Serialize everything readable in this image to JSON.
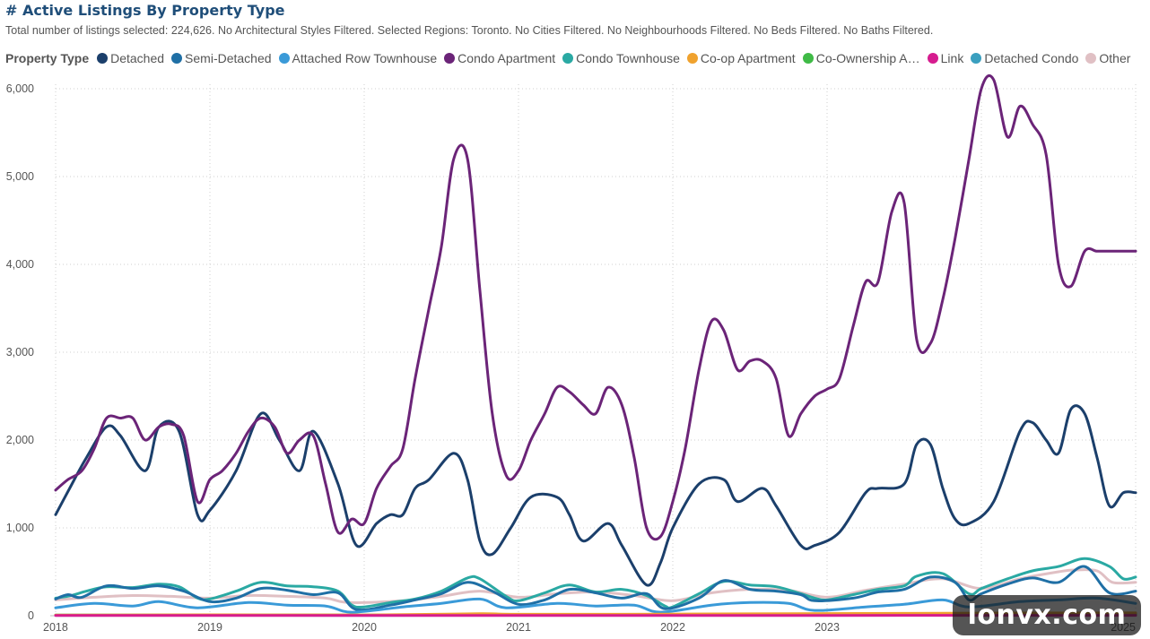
{
  "header": {
    "title": "# Active Listings By Property Type",
    "subtitle": "Total number of listings selected: 224,626. No Architectural Styles Filtered. Selected Regions: Toronto. No Cities Filtered. No Neighbourhoods Filtered. No Beds Filtered. No Baths Filtered."
  },
  "legend": {
    "title": "Property Type",
    "items": [
      {
        "label": "Detached",
        "color": "#1b3f6b"
      },
      {
        "label": "Semi-Detached",
        "color": "#1f6fa5"
      },
      {
        "label": "Attached Row Townhouse",
        "color": "#3a9ad8"
      },
      {
        "label": "Condo Apartment",
        "color": "#6b2478"
      },
      {
        "label": "Condo Townhouse",
        "color": "#2aa9a3"
      },
      {
        "label": "Co-op Apartment",
        "color": "#f0a22e"
      },
      {
        "label": "Co-Ownership A…",
        "color": "#3fba46"
      },
      {
        "label": "Link",
        "color": "#d61c8f"
      },
      {
        "label": "Detached Condo",
        "color": "#3a9fbf"
      },
      {
        "label": "Other",
        "color": "#e0c0c4"
      }
    ]
  },
  "watermark": "lonvx.com",
  "chart_data": {
    "type": "line",
    "title": "# Active Listings By Property Type",
    "x_range": [
      2018.0,
      2025.0
    ],
    "x_ticks": [
      2018,
      2019,
      2020,
      2021,
      2022,
      2023,
      2024,
      2025
    ],
    "x_tick_labels": [
      "2018",
      "2019",
      "2020",
      "2021",
      "2022",
      "2023",
      "",
      "2025"
    ],
    "ylim": [
      0,
      6000
    ],
    "y_ticks": [
      0,
      1000,
      2000,
      3000,
      4000,
      5000,
      6000
    ],
    "y_tick_labels": [
      "0",
      "1,000",
      "2,000",
      "3,000",
      "4,000",
      "5,000",
      "6,000"
    ],
    "grid": true,
    "legend_position": "top",
    "series": [
      {
        "name": "Other",
        "color": "#e0c0c4",
        "x": [
          2018.0,
          2018.25,
          2018.5,
          2018.75,
          2019.0,
          2019.25,
          2019.5,
          2019.75,
          2019.9,
          2020.25,
          2020.5,
          2020.75,
          2021.0,
          2021.25,
          2021.5,
          2021.75,
          2022.0,
          2022.25,
          2022.5,
          2022.75,
          2023.0,
          2023.25,
          2023.5,
          2023.75,
          2024.0,
          2024.25,
          2024.5,
          2024.6,
          2024.75,
          2024.85,
          2025.0
        ],
        "values": [
          180,
          210,
          230,
          220,
          200,
          230,
          220,
          200,
          150,
          170,
          220,
          280,
          210,
          250,
          270,
          230,
          170,
          260,
          300,
          290,
          210,
          290,
          360,
          420,
          310,
          420,
          500,
          520,
          510,
          380,
          380
        ]
      },
      {
        "name": "Condo Townhouse",
        "color": "#2aa9a3",
        "x": [
          2018.0,
          2018.1,
          2018.2,
          2018.33,
          2018.5,
          2018.67,
          2018.8,
          2018.92,
          2019.0,
          2019.17,
          2019.33,
          2019.5,
          2019.67,
          2019.83,
          2019.92,
          2020.0,
          2020.17,
          2020.33,
          2020.5,
          2020.67,
          2020.75,
          2020.92,
          2021.0,
          2021.17,
          2021.33,
          2021.5,
          2021.67,
          2021.83,
          2021.95,
          2022.0,
          2022.17,
          2022.33,
          2022.5,
          2022.67,
          2022.83,
          2022.92,
          2023.0,
          2023.17,
          2023.33,
          2023.5,
          2023.58,
          2023.75,
          2023.92,
          2024.0,
          2024.17,
          2024.33,
          2024.5,
          2024.67,
          2024.83,
          2024.92,
          2025.0
        ],
        "values": [
          200,
          230,
          280,
          330,
          320,
          360,
          330,
          200,
          190,
          280,
          380,
          340,
          330,
          280,
          120,
          100,
          150,
          190,
          280,
          430,
          420,
          220,
          170,
          260,
          350,
          270,
          300,
          230,
          110,
          100,
          250,
          390,
          350,
          330,
          250,
          200,
          180,
          240,
          300,
          340,
          450,
          480,
          250,
          310,
          420,
          510,
          560,
          650,
          560,
          420,
          440
        ]
      },
      {
        "name": "Semi-Detached",
        "color": "#1f6fa5",
        "x": [
          2018.0,
          2018.08,
          2018.17,
          2018.33,
          2018.5,
          2018.67,
          2018.83,
          2019.0,
          2019.17,
          2019.33,
          2019.5,
          2019.67,
          2019.83,
          2019.95,
          2020.17,
          2020.33,
          2020.5,
          2020.67,
          2020.83,
          2021.0,
          2021.17,
          2021.33,
          2021.5,
          2021.67,
          2021.83,
          2021.95,
          2022.17,
          2022.33,
          2022.5,
          2022.67,
          2022.83,
          2022.92,
          2023.17,
          2023.33,
          2023.5,
          2023.67,
          2023.83,
          2023.92,
          2024.0,
          2024.17,
          2024.33,
          2024.5,
          2024.67,
          2024.83,
          2025.0
        ],
        "values": [
          190,
          240,
          210,
          340,
          310,
          340,
          280,
          160,
          200,
          310,
          290,
          240,
          260,
          70,
          120,
          180,
          250,
          380,
          280,
          130,
          180,
          300,
          260,
          200,
          250,
          80,
          200,
          400,
          300,
          280,
          240,
          170,
          200,
          270,
          300,
          440,
          380,
          180,
          250,
          360,
          430,
          380,
          560,
          260,
          280
        ]
      },
      {
        "name": "Attached Row Townhouse",
        "color": "#3a9ad8",
        "x": [
          2018.0,
          2018.25,
          2018.5,
          2018.67,
          2018.92,
          2019.25,
          2019.5,
          2019.75,
          2019.92,
          2020.25,
          2020.5,
          2020.75,
          2020.92,
          2021.25,
          2021.5,
          2021.75,
          2021.92,
          2022.25,
          2022.5,
          2022.75,
          2022.92,
          2023.25,
          2023.5,
          2023.75,
          2023.92,
          2024.25,
          2024.5,
          2024.75,
          2025.0
        ],
        "values": [
          90,
          140,
          110,
          160,
          90,
          150,
          120,
          110,
          40,
          100,
          140,
          190,
          90,
          140,
          110,
          120,
          40,
          120,
          150,
          140,
          60,
          100,
          130,
          180,
          100,
          160,
          180,
          200,
          140
        ]
      },
      {
        "name": "Detached Condo",
        "color": "#3a9fbf",
        "x": [
          2018.0,
          2019.0,
          2020.0,
          2021.0,
          2022.0,
          2023.0,
          2024.0,
          2025.0
        ],
        "values": [
          4,
          5,
          4,
          6,
          5,
          6,
          7,
          8
        ]
      },
      {
        "name": "Co-Ownership A…",
        "color": "#3fba46",
        "x": [
          2018.0,
          2019.0,
          2020.0,
          2021.0,
          2022.0,
          2023.0,
          2024.0,
          2025.0
        ],
        "values": [
          8,
          8,
          7,
          12,
          10,
          14,
          20,
          24
        ]
      },
      {
        "name": "Co-op Apartment",
        "color": "#f0a22e",
        "x": [
          2018.0,
          2019.0,
          2020.0,
          2020.75,
          2021.0,
          2022.0,
          2023.0,
          2024.0,
          2025.0
        ],
        "values": [
          6,
          10,
          8,
          22,
          16,
          18,
          24,
          30,
          32
        ]
      },
      {
        "name": "Link",
        "color": "#d61c8f",
        "x": [
          2018.0,
          2019.0,
          2020.0,
          2021.0,
          2022.0,
          2023.0,
          2024.0,
          2025.0
        ],
        "values": [
          2,
          3,
          2,
          3,
          3,
          3,
          4,
          4
        ]
      },
      {
        "name": "Detached",
        "color": "#1b3f6b",
        "x": [
          2018.0,
          2018.1,
          2018.2,
          2018.33,
          2018.42,
          2018.58,
          2018.67,
          2018.8,
          2018.92,
          2019.0,
          2019.17,
          2019.33,
          2019.45,
          2019.58,
          2019.67,
          2019.83,
          2019.95,
          2020.08,
          2020.17,
          2020.25,
          2020.33,
          2020.42,
          2020.58,
          2020.67,
          2020.75,
          2020.83,
          2020.95,
          2021.08,
          2021.25,
          2021.33,
          2021.42,
          2021.58,
          2021.67,
          2021.83,
          2021.92,
          2022.0,
          2022.17,
          2022.33,
          2022.42,
          2022.58,
          2022.67,
          2022.83,
          2022.92,
          2023.08,
          2023.25,
          2023.33,
          2023.5,
          2023.58,
          2023.67,
          2023.75,
          2023.83,
          2023.92,
          2024.08,
          2024.25,
          2024.33,
          2024.42,
          2024.5,
          2024.58,
          2024.67,
          2024.75,
          2024.83,
          2024.92,
          2025.0
        ],
        "values": [
          1150,
          1480,
          1800,
          2150,
          2050,
          1650,
          2150,
          2100,
          1150,
          1200,
          1650,
          2300,
          2000,
          1650,
          2100,
          1500,
          800,
          1050,
          1150,
          1150,
          1450,
          1550,
          1850,
          1550,
          850,
          700,
          1000,
          1350,
          1350,
          1150,
          850,
          1050,
          800,
          350,
          600,
          1000,
          1500,
          1550,
          1300,
          1450,
          1250,
          800,
          800,
          950,
          1400,
          1450,
          1500,
          1950,
          1950,
          1450,
          1100,
          1050,
          1300,
          2100,
          2200,
          2000,
          1850,
          2350,
          2300,
          1800,
          1250,
          1400,
          1400
        ]
      },
      {
        "name": "Condo Apartment",
        "color": "#6b2478",
        "x": [
          2018.0,
          2018.08,
          2018.17,
          2018.25,
          2018.33,
          2018.42,
          2018.5,
          2018.58,
          2018.67,
          2018.75,
          2018.83,
          2018.92,
          2019.0,
          2019.08,
          2019.17,
          2019.25,
          2019.33,
          2019.42,
          2019.5,
          2019.58,
          2019.67,
          2019.75,
          2019.83,
          2019.92,
          2020.0,
          2020.08,
          2020.17,
          2020.25,
          2020.33,
          2020.42,
          2020.5,
          2020.58,
          2020.67,
          2020.75,
          2020.83,
          2020.92,
          2021.0,
          2021.08,
          2021.17,
          2021.25,
          2021.33,
          2021.42,
          2021.5,
          2021.58,
          2021.67,
          2021.75,
          2021.83,
          2021.92,
          2022.0,
          2022.08,
          2022.17,
          2022.25,
          2022.33,
          2022.42,
          2022.5,
          2022.58,
          2022.67,
          2022.75,
          2022.83,
          2022.92,
          2023.0,
          2023.08,
          2023.17,
          2023.25,
          2023.33,
          2023.42,
          2023.5,
          2023.58,
          2023.67,
          2023.75,
          2023.83,
          2023.92,
          2024.0,
          2024.08,
          2024.17,
          2024.25,
          2024.33,
          2024.42,
          2024.5,
          2024.58,
          2024.67,
          2024.75,
          2024.83,
          2024.92,
          2025.0
        ],
        "values": [
          1430,
          1550,
          1650,
          1900,
          2250,
          2250,
          2250,
          2000,
          2150,
          2180,
          2050,
          1300,
          1550,
          1650,
          1850,
          2100,
          2250,
          2150,
          1850,
          2000,
          2050,
          1500,
          950,
          1100,
          1050,
          1450,
          1700,
          1900,
          2700,
          3500,
          4200,
          5200,
          5200,
          3700,
          2300,
          1600,
          1650,
          2000,
          2300,
          2600,
          2550,
          2400,
          2300,
          2600,
          2400,
          1800,
          1000,
          900,
          1300,
          1900,
          2800,
          3350,
          3250,
          2800,
          2900,
          2900,
          2700,
          2050,
          2300,
          2500,
          2580,
          2700,
          3300,
          3800,
          3800,
          4600,
          4700,
          3150,
          3100,
          3600,
          4300,
          5200,
          6000,
          6100,
          5450,
          5800,
          5600,
          5250,
          4000,
          3750,
          4150,
          4150,
          4150,
          4150,
          4150
        ]
      }
    ]
  }
}
